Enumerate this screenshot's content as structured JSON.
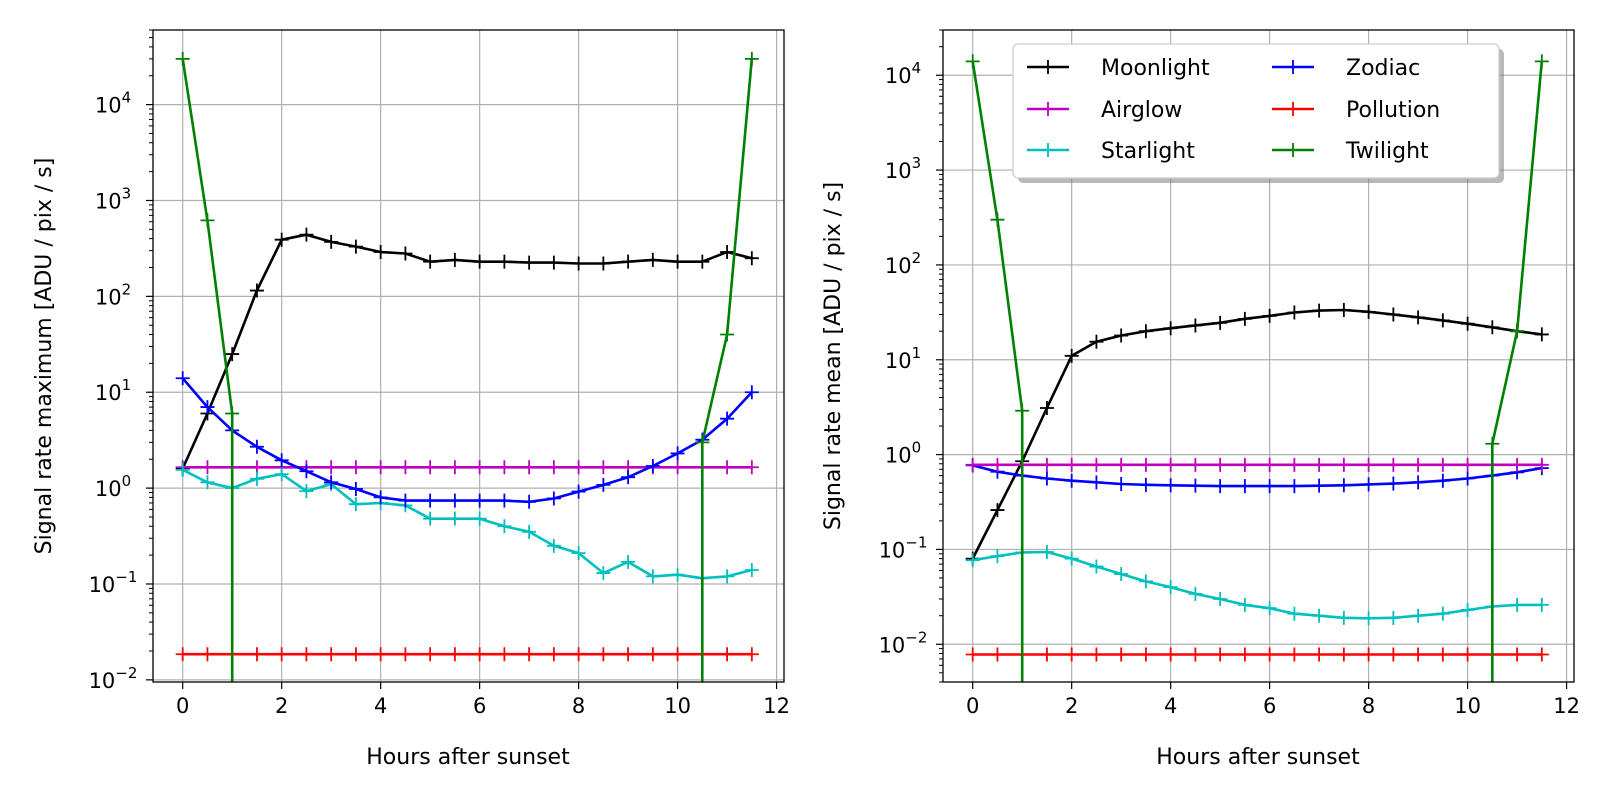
{
  "chart_data": [
    {
      "type": "line",
      "xlabel": "Hours after sunset",
      "ylabel": "Signal rate maximum [ADU / pix / s]",
      "yscale": "log",
      "xlim": [
        -0.6,
        12.15
      ],
      "ylim": [
        0.0095,
        60000
      ],
      "grid": true,
      "x_ticks": [
        0,
        2,
        4,
        6,
        8,
        10,
        12
      ],
      "x_tick_labels": [
        "0",
        "2",
        "4",
        "6",
        "8",
        "10",
        "12"
      ],
      "y_ticks": [
        0.01,
        0.1,
        1,
        10,
        100,
        1000,
        10000
      ],
      "y_tick_labels": [
        [
          "10",
          "−2"
        ],
        [
          "10",
          "−1"
        ],
        [
          "10",
          "0"
        ],
        [
          "10",
          "1"
        ],
        [
          "10",
          "2"
        ],
        [
          "10",
          "3"
        ],
        [
          "10",
          "4"
        ]
      ],
      "series": [
        {
          "key": "moonlight",
          "color": "#000000",
          "x": [
            0,
            0.5,
            1,
            1.5,
            2,
            2.5,
            3,
            3.5,
            4,
            4.5,
            5,
            5.5,
            6,
            6.5,
            7,
            7.5,
            8,
            8.5,
            9,
            9.5,
            10,
            10.5,
            11,
            11.5
          ],
          "y": [
            1.6,
            6,
            25,
            115,
            390,
            440,
            370,
            330,
            290,
            280,
            230,
            240,
            230,
            230,
            225,
            225,
            220,
            220,
            230,
            240,
            230,
            230,
            290,
            250
          ]
        },
        {
          "key": "airglow",
          "color": "#bf00bf",
          "x": [
            0,
            0.5,
            1,
            1.5,
            2,
            2.5,
            3,
            3.5,
            4,
            4.5,
            5,
            5.5,
            6,
            6.5,
            7,
            7.5,
            8,
            8.5,
            9,
            9.5,
            10,
            10.5,
            11,
            11.5
          ],
          "y": [
            1.65,
            1.65,
            1.65,
            1.65,
            1.65,
            1.65,
            1.65,
            1.65,
            1.65,
            1.65,
            1.65,
            1.65,
            1.65,
            1.65,
            1.65,
            1.65,
            1.65,
            1.65,
            1.65,
            1.65,
            1.65,
            1.65,
            1.65,
            1.65
          ]
        },
        {
          "key": "starlight",
          "color": "#00bfbf",
          "x": [
            0,
            0.5,
            1,
            1.5,
            2,
            2.5,
            3,
            3.5,
            4,
            4.5,
            5,
            5.5,
            6,
            6.5,
            7,
            7.5,
            8,
            8.5,
            9,
            9.5,
            10,
            10.5,
            11,
            11.5
          ],
          "y": [
            1.55,
            1.15,
            1.0,
            1.25,
            1.4,
            0.93,
            1.1,
            0.68,
            0.7,
            0.66,
            0.48,
            0.48,
            0.48,
            0.4,
            0.35,
            0.25,
            0.21,
            0.13,
            0.17,
            0.12,
            0.125,
            0.115,
            0.12,
            0.14
          ]
        },
        {
          "key": "zodiac",
          "color": "#0000ff",
          "x": [
            0,
            0.5,
            1,
            1.5,
            2,
            2.5,
            3,
            3.5,
            4,
            4.5,
            5,
            5.5,
            6,
            6.5,
            7,
            7.5,
            8,
            8.5,
            9,
            9.5,
            10,
            10.5,
            11,
            11.5
          ],
          "y": [
            14,
            7,
            4,
            2.7,
            1.95,
            1.5,
            1.15,
            0.98,
            0.8,
            0.74,
            0.74,
            0.74,
            0.74,
            0.74,
            0.72,
            0.78,
            0.92,
            1.08,
            1.3,
            1.7,
            2.3,
            3.2,
            5.3,
            10
          ]
        },
        {
          "key": "pollution",
          "color": "#ff0000",
          "x": [
            0,
            0.5,
            1,
            1.5,
            2,
            2.5,
            3,
            3.5,
            4,
            4.5,
            5,
            5.5,
            6,
            6.5,
            7,
            7.5,
            8,
            8.5,
            9,
            9.5,
            10,
            10.5,
            11,
            11.5
          ],
          "y": [
            0.0185,
            0.0185,
            0.0185,
            0.0185,
            0.0185,
            0.0185,
            0.0185,
            0.0185,
            0.0185,
            0.0185,
            0.0185,
            0.0185,
            0.0185,
            0.0185,
            0.0185,
            0.0185,
            0.0185,
            0.0185,
            0.0185,
            0.0185,
            0.0185,
            0.0185,
            0.0185,
            0.0185
          ]
        },
        {
          "key": "twilight",
          "color": "#008000",
          "x": [
            0,
            0.5,
            1,
            10.5,
            11,
            11.5
          ],
          "y": [
            30000,
            620,
            6,
            3,
            40,
            30000
          ]
        }
      ]
    },
    {
      "type": "line",
      "xlabel": "Hours after sunset",
      "ylabel": "Signal rate mean [ADU / pix / s]",
      "yscale": "log",
      "xlim": [
        -0.6,
        12.15
      ],
      "ylim": [
        0.004,
        30000
      ],
      "grid": true,
      "legend": {
        "location": "top-right",
        "columns": 2
      },
      "x_ticks": [
        0,
        2,
        4,
        6,
        8,
        10,
        12
      ],
      "x_tick_labels": [
        "0",
        "2",
        "4",
        "6",
        "8",
        "10",
        "12"
      ],
      "y_ticks": [
        0.01,
        0.1,
        1,
        10,
        100,
        1000,
        10000
      ],
      "y_tick_labels": [
        [
          "10",
          "−2"
        ],
        [
          "10",
          "−1"
        ],
        [
          "10",
          "0"
        ],
        [
          "10",
          "1"
        ],
        [
          "10",
          "2"
        ],
        [
          "10",
          "3"
        ],
        [
          "10",
          "4"
        ]
      ],
      "series": [
        {
          "key": "moonlight",
          "name": "Moonlight",
          "color": "#000000",
          "x": [
            0,
            0.5,
            1,
            1.5,
            2,
            2.5,
            3,
            3.5,
            4,
            4.5,
            5,
            5.5,
            6,
            6.5,
            7,
            7.5,
            8,
            8.5,
            9,
            9.5,
            10,
            10.5,
            11,
            11.5
          ],
          "y": [
            0.08,
            0.26,
            0.85,
            3.1,
            11,
            15.5,
            18,
            20,
            21.5,
            23,
            24.5,
            27,
            29,
            31.5,
            33,
            33.5,
            32,
            30,
            28,
            26,
            24,
            22,
            20,
            18.5
          ]
        },
        {
          "key": "zodiac",
          "name": "Zodiac",
          "color": "#0000ff",
          "x": [
            0,
            0.5,
            1,
            1.5,
            2,
            2.5,
            3,
            3.5,
            4,
            4.5,
            5,
            5.5,
            6,
            6.5,
            7,
            7.5,
            8,
            8.5,
            9,
            9.5,
            10,
            10.5,
            11,
            11.5
          ],
          "y": [
            0.77,
            0.66,
            0.6,
            0.56,
            0.53,
            0.51,
            0.49,
            0.48,
            0.475,
            0.47,
            0.465,
            0.465,
            0.465,
            0.465,
            0.47,
            0.475,
            0.485,
            0.495,
            0.51,
            0.53,
            0.56,
            0.6,
            0.65,
            0.72
          ]
        },
        {
          "key": "airglow",
          "name": "Airglow",
          "color": "#bf00bf",
          "x": [
            0,
            0.5,
            1,
            1.5,
            2,
            2.5,
            3,
            3.5,
            4,
            4.5,
            5,
            5.5,
            6,
            6.5,
            7,
            7.5,
            8,
            8.5,
            9,
            9.5,
            10,
            10.5,
            11,
            11.5
          ],
          "y": [
            0.78,
            0.78,
            0.78,
            0.78,
            0.78,
            0.78,
            0.78,
            0.78,
            0.78,
            0.78,
            0.78,
            0.78,
            0.78,
            0.78,
            0.78,
            0.78,
            0.78,
            0.78,
            0.78,
            0.78,
            0.78,
            0.78,
            0.78,
            0.78
          ]
        },
        {
          "key": "pollution",
          "name": "Pollution",
          "color": "#ff0000",
          "x": [
            0,
            0.5,
            1,
            1.5,
            2,
            2.5,
            3,
            3.5,
            4,
            4.5,
            5,
            5.5,
            6,
            6.5,
            7,
            7.5,
            8,
            8.5,
            9,
            9.5,
            10,
            10.5,
            11,
            11.5
          ],
          "y": [
            0.0078,
            0.0078,
            0.0078,
            0.0078,
            0.0078,
            0.0078,
            0.0078,
            0.0078,
            0.0078,
            0.0078,
            0.0078,
            0.0078,
            0.0078,
            0.0078,
            0.0078,
            0.0078,
            0.0078,
            0.0078,
            0.0078,
            0.0078,
            0.0078,
            0.0078,
            0.0078,
            0.0078
          ]
        },
        {
          "key": "starlight",
          "name": "Starlight",
          "color": "#00bfbf",
          "x": [
            0,
            0.5,
            1,
            1.5,
            2,
            2.5,
            3,
            3.5,
            4,
            4.5,
            5,
            5.5,
            6,
            6.5,
            7,
            7.5,
            8,
            8.5,
            9,
            9.5,
            10,
            10.5,
            11,
            11.5
          ],
          "y": [
            0.077,
            0.085,
            0.093,
            0.094,
            0.08,
            0.066,
            0.055,
            0.046,
            0.04,
            0.034,
            0.03,
            0.026,
            0.024,
            0.021,
            0.02,
            0.019,
            0.0188,
            0.019,
            0.02,
            0.021,
            0.023,
            0.025,
            0.026,
            0.026
          ]
        },
        {
          "key": "twilight",
          "name": "Twilight",
          "color": "#008000",
          "x": [
            0,
            0.5,
            1,
            10.5,
            11,
            11.5
          ],
          "y": [
            14000,
            300,
            2.9,
            1.3,
            20,
            14000
          ]
        }
      ]
    }
  ]
}
